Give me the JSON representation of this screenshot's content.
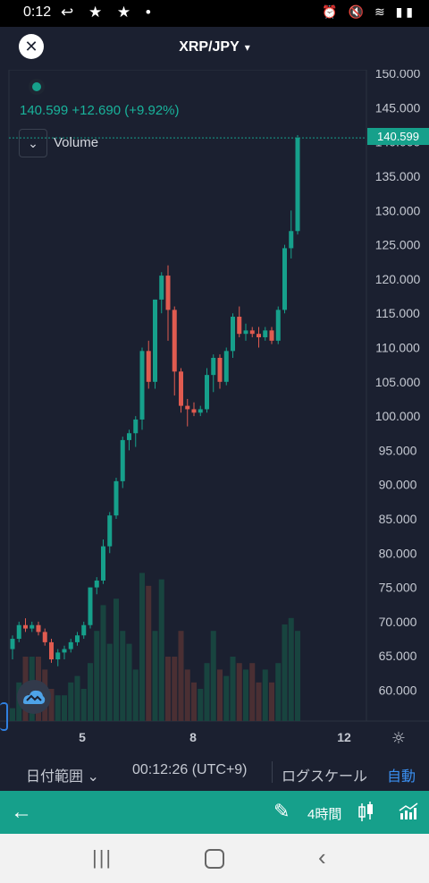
{
  "status_bar": {
    "time": "0:12",
    "notif_icons": "↩ ★ ★ •",
    "sys_icons": "⏰ 🔇 ≋ ▮▮"
  },
  "header": {
    "coin_symbol": "✕",
    "pair": "XRP/JPY",
    "chevron": "❯"
  },
  "quote": {
    "price": "140.599",
    "change": "+12.690",
    "change_pct": "(+9.92%)"
  },
  "volume_label": "Volume",
  "price_tag": "140.599",
  "colors": {
    "up": "#16a08b",
    "down": "#e05b50",
    "vol_up": "#18443f",
    "vol_down": "#4a2f33",
    "grid": "#2b3240"
  },
  "chart_data": {
    "type": "candlestick",
    "y_axis": {
      "ticks": [
        "150.000",
        "145.000",
        "140.000",
        "135.000",
        "130.000",
        "125.000",
        "120.000",
        "115.000",
        "110.000",
        "105.000",
        "100.000",
        "95.000",
        "90.000",
        "85.000",
        "80.000",
        "75.000",
        "70.000",
        "65.000",
        "60.000"
      ],
      "range": [
        55,
        150
      ]
    },
    "x_axis": {
      "labels": [
        "5",
        "8",
        "12"
      ]
    },
    "candles": [
      [
        66,
        68,
        64.5,
        67.5
      ],
      [
        67.5,
        70,
        67,
        69.5
      ],
      [
        69.5,
        70.5,
        68.5,
        69
      ],
      [
        69,
        70,
        68.5,
        69.5
      ],
      [
        69.5,
        70,
        68,
        68.5
      ],
      [
        68.5,
        69,
        66.5,
        67
      ],
      [
        67,
        67.5,
        64,
        64.5
      ],
      [
        64.5,
        66,
        63.5,
        65.5
      ],
      [
        65.5,
        66.5,
        64.5,
        66
      ],
      [
        66,
        67.5,
        65.5,
        67
      ],
      [
        67,
        68.5,
        66.5,
        68
      ],
      [
        68,
        70,
        67.5,
        69.5
      ],
      [
        69.5,
        75,
        69,
        75
      ],
      [
        75,
        76.5,
        74,
        76
      ],
      [
        76,
        82,
        75.5,
        81
      ],
      [
        81,
        86,
        80,
        85.5
      ],
      [
        85.5,
        91,
        85,
        90.5
      ],
      [
        90.5,
        97,
        89.5,
        96.5
      ],
      [
        96.5,
        98,
        95,
        97.5
      ],
      [
        97.5,
        100,
        95.5,
        99.5
      ],
      [
        99.5,
        110,
        98,
        109.5
      ],
      [
        109.5,
        111,
        104,
        105
      ],
      [
        105,
        117,
        104,
        117
      ],
      [
        117,
        121,
        115,
        120.5
      ],
      [
        120.5,
        122,
        111,
        115.5
      ],
      [
        115.5,
        116,
        103,
        106.5
      ],
      [
        106.5,
        107,
        100.5,
        101.5
      ],
      [
        101.5,
        102.5,
        98.5,
        101
      ],
      [
        101,
        102,
        100,
        100.5
      ],
      [
        100.5,
        101.5,
        100,
        101
      ],
      [
        101,
        107,
        100.5,
        106
      ],
      [
        106,
        109,
        103.5,
        108.5
      ],
      [
        108.5,
        109,
        104,
        105
      ],
      [
        105,
        110,
        104.5,
        109.5
      ],
      [
        109.5,
        115,
        108.5,
        114.5
      ],
      [
        114.5,
        116,
        111.5,
        112
      ],
      [
        112,
        113.5,
        111,
        112.5
      ],
      [
        112.5,
        113,
        111.5,
        112
      ],
      [
        112,
        113,
        110,
        111.5
      ],
      [
        111.5,
        113,
        111,
        112.5
      ],
      [
        112.5,
        113,
        110.5,
        111
      ],
      [
        111,
        116,
        110.5,
        115.5
      ],
      [
        115.5,
        125,
        115,
        124.5
      ],
      [
        124.5,
        130,
        123,
        127
      ],
      [
        127,
        141,
        126.5,
        140.6
      ]
    ],
    "volumes": [
      2,
      6,
      10,
      10,
      10,
      8,
      5,
      4,
      4,
      6,
      7,
      5,
      9,
      14,
      18,
      12,
      19,
      14,
      12,
      8,
      23,
      21,
      14,
      22,
      10,
      10,
      14,
      8,
      6,
      5,
      9,
      14,
      8,
      7,
      10,
      9,
      8,
      9,
      6,
      8,
      6,
      9,
      15,
      16,
      14
    ],
    "last_price": 140.599
  },
  "bottom_bar": {
    "range": "日付範囲 ⌄",
    "clock": "00:12:26 (UTC+9)",
    "log_scale": "ログスケール",
    "auto": "自動"
  },
  "toolbar": {
    "back": "←",
    "pen": "✎",
    "interval": "4時間"
  },
  "nav": {
    "recent": "|||",
    "back": "‹"
  }
}
